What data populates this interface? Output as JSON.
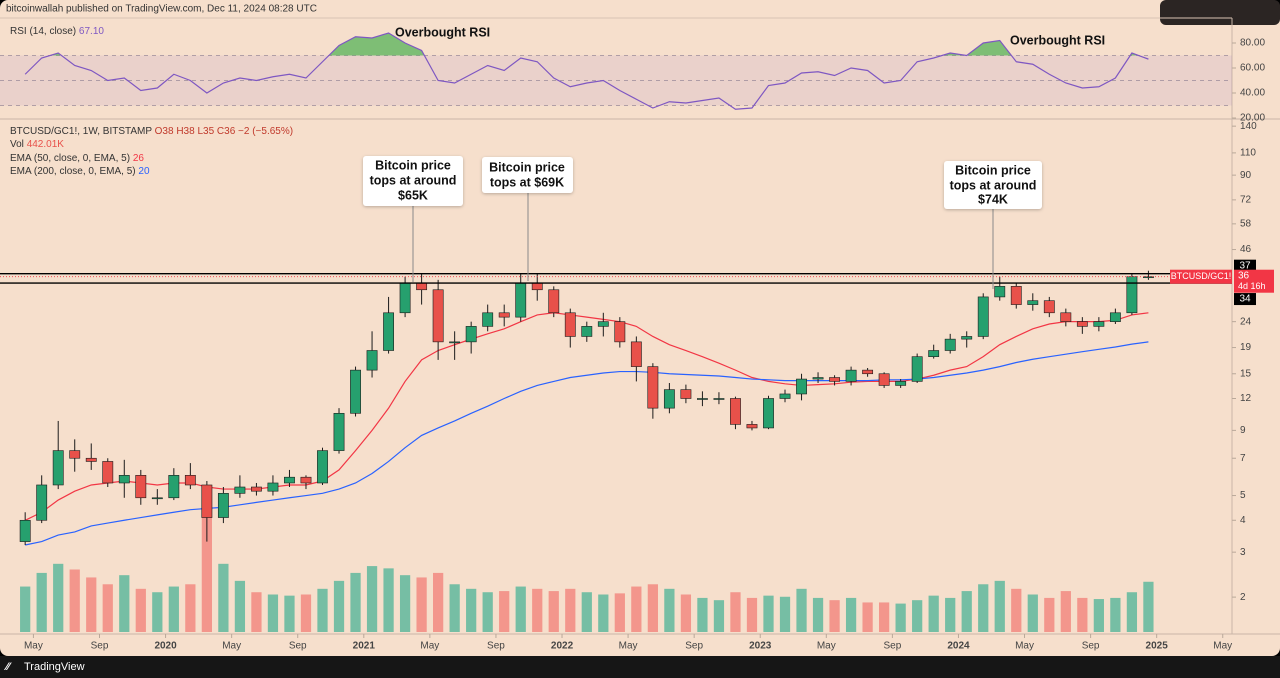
{
  "header": "bitcoinwallah published on TradingView.com, Dec 11, 2024 08:28 UTC",
  "footer": "TradingView",
  "chart_data": {
    "type": "candlestick",
    "legend": {
      "symbol": "BTCUSD/GC1!, 1W, BITSTAMP",
      "ohlc": "O38 H38 L35 C36 −2 (−5.65%)",
      "volume_label": "Vol",
      "volume_value": "442.01K"
    },
    "x": [
      "2019-04",
      "2019-05",
      "2019-06",
      "2019-07",
      "2019-08",
      "2019-09",
      "2019-10",
      "2019-11",
      "2019-12",
      "2020-01",
      "2020-02",
      "2020-03",
      "2020-04",
      "2020-05",
      "2020-06",
      "2020-07",
      "2020-08",
      "2020-09",
      "2020-10",
      "2020-11",
      "2020-12",
      "2021-01",
      "2021-02",
      "2021-03",
      "2021-04",
      "2021-05",
      "2021-06",
      "2021-07",
      "2021-08",
      "2021-09",
      "2021-10",
      "2021-11",
      "2021-12",
      "2022-01",
      "2022-02",
      "2022-03",
      "2022-04",
      "2022-05",
      "2022-06",
      "2022-07",
      "2022-08",
      "2022-09",
      "2022-10",
      "2022-11",
      "2022-12",
      "2023-01",
      "2023-02",
      "2023-03",
      "2023-04",
      "2023-05",
      "2023-06",
      "2023-07",
      "2023-08",
      "2023-09",
      "2023-10",
      "2023-11",
      "2023-12",
      "2024-01",
      "2024-02",
      "2024-03",
      "2024-04",
      "2024-05",
      "2024-06",
      "2024-07",
      "2024-08",
      "2024-09",
      "2024-10",
      "2024-11",
      "2024-12"
    ],
    "open": [
      3.3,
      4.0,
      5.5,
      7.5,
      7.0,
      6.8,
      5.6,
      6.0,
      4.9,
      4.9,
      6.0,
      5.5,
      4.1,
      5.1,
      5.4,
      5.2,
      5.6,
      5.9,
      5.6,
      7.5,
      10.5,
      15.5,
      18.5,
      26,
      34,
      32,
      20,
      20,
      23,
      26,
      25,
      34,
      32,
      26,
      21,
      23,
      24,
      20,
      16,
      11,
      13,
      12,
      12,
      12,
      9.5,
      9.2,
      12,
      12.5,
      14.3,
      14.5,
      14,
      15.5,
      15,
      13.5,
      14,
      17.5,
      18.5,
      20.5,
      21,
      30,
      33,
      28,
      29,
      26,
      24,
      23,
      24,
      26,
      36
    ],
    "high": [
      4.3,
      6.0,
      9.8,
      8.3,
      8.0,
      7.0,
      6.9,
      6.3,
      5.3,
      6.4,
      6.7,
      5.7,
      5.4,
      6.0,
      5.6,
      6.0,
      6.3,
      6.0,
      7.7,
      11,
      16,
      22,
      30,
      36,
      37,
      35,
      22,
      24,
      28,
      28,
      37,
      37,
      33,
      27,
      24,
      26,
      25,
      21,
      16.5,
      13.8,
      13.6,
      12.8,
      12.7,
      12.2,
      9.8,
      12.3,
      13,
      15,
      15.2,
      14.8,
      16,
      15.8,
      15.2,
      14.3,
      18,
      19.5,
      21.5,
      22,
      31,
      36,
      34,
      31,
      30,
      27,
      25,
      25,
      27,
      37,
      38
    ],
    "low": [
      3.2,
      3.9,
      5.3,
      6.2,
      6.3,
      5.4,
      4.9,
      4.6,
      4.6,
      4.8,
      5.3,
      3.3,
      3.9,
      4.9,
      5.0,
      5.0,
      5.4,
      5.3,
      5.5,
      7.3,
      10.2,
      14.5,
      18,
      25,
      28,
      17,
      17,
      18,
      22,
      23,
      24,
      29,
      25,
      19,
      20,
      21,
      19,
      14,
      10,
      10.5,
      11.5,
      11.2,
      11.4,
      9.1,
      9.0,
      9.1,
      11.6,
      11.8,
      13.8,
      13.5,
      13.5,
      14.6,
      13.2,
      13.2,
      13.8,
      17.2,
      18,
      19,
      20.5,
      29,
      27,
      26.5,
      25,
      23,
      21.5,
      22,
      23.5,
      25.5,
      35
    ],
    "close": [
      4.0,
      5.5,
      7.5,
      7.0,
      6.8,
      5.6,
      6.0,
      4.9,
      4.9,
      6.0,
      5.5,
      4.1,
      5.1,
      5.4,
      5.2,
      5.6,
      5.9,
      5.6,
      7.5,
      10.5,
      15.5,
      18.5,
      26,
      34,
      32,
      20,
      20,
      23,
      26,
      25,
      34,
      32,
      26,
      21,
      23,
      24,
      20,
      16,
      11,
      13,
      12,
      12,
      12,
      9.5,
      9.2,
      12,
      12.5,
      14.3,
      14.5,
      14,
      15.5,
      15,
      13.5,
      14,
      17.5,
      18.5,
      20.5,
      21,
      30,
      33,
      28,
      29,
      26,
      24,
      23,
      24,
      26,
      36,
      36
    ],
    "up_color": "#26a06e",
    "down_color": "#e8514a",
    "volume": {
      "up_color": "#5fb89c",
      "down_color": "#f28a80",
      "values": [
        400,
        520,
        600,
        550,
        480,
        420,
        500,
        380,
        350,
        400,
        420,
        1100,
        600,
        450,
        350,
        330,
        320,
        330,
        380,
        450,
        520,
        580,
        560,
        500,
        480,
        520,
        420,
        380,
        350,
        360,
        400,
        380,
        360,
        380,
        350,
        330,
        340,
        400,
        420,
        380,
        330,
        300,
        280,
        350,
        300,
        320,
        310,
        380,
        300,
        280,
        300,
        260,
        260,
        250,
        280,
        320,
        300,
        360,
        420,
        450,
        380,
        330,
        300,
        360,
        300,
        290,
        300,
        350,
        442.01
      ]
    },
    "lines": [
      {
        "name": "EMA (50, close, 0, EMA, 5)",
        "color": "#f23645",
        "last": 26,
        "values": [
          4.0,
          4.3,
          4.8,
          5.2,
          5.5,
          5.6,
          5.7,
          5.6,
          5.5,
          5.6,
          5.6,
          5.4,
          5.3,
          5.3,
          5.3,
          5.4,
          5.5,
          5.5,
          5.7,
          6.3,
          7.5,
          9,
          11,
          14,
          17,
          18.5,
          19.5,
          20.5,
          21.5,
          22.5,
          24,
          25.5,
          26,
          25.5,
          25,
          24.5,
          24,
          23,
          21,
          19.5,
          18.5,
          17.5,
          16.5,
          15.5,
          14.5,
          14,
          13.7,
          13.5,
          13.6,
          13.7,
          13.9,
          14,
          14,
          14,
          14.3,
          14.8,
          15.5,
          16,
          17.5,
          19.5,
          21,
          22.5,
          23.5,
          24,
          24,
          24,
          24.3,
          25.5,
          26
        ]
      },
      {
        "name": "EMA (200, close, 0, EMA, 5)",
        "color": "#2962ff",
        "last": 20,
        "values": [
          3.2,
          3.3,
          3.5,
          3.6,
          3.8,
          3.9,
          4.0,
          4.1,
          4.2,
          4.3,
          4.4,
          4.45,
          4.5,
          4.6,
          4.7,
          4.8,
          4.9,
          5.0,
          5.1,
          5.3,
          5.6,
          6.1,
          6.8,
          7.7,
          8.6,
          9.2,
          9.8,
          10.5,
          11.2,
          12,
          12.8,
          13.5,
          14,
          14.5,
          14.8,
          15.1,
          15.3,
          15.3,
          15.2,
          15,
          14.9,
          14.8,
          14.7,
          14.5,
          14.3,
          14.2,
          14.1,
          14.1,
          14.1,
          14.1,
          14.1,
          14.1,
          14.2,
          14.2,
          14.3,
          14.5,
          14.8,
          15.1,
          15.5,
          16,
          16.6,
          17.1,
          17.5,
          17.9,
          18.3,
          18.7,
          19.1,
          19.6,
          20
        ]
      }
    ],
    "log_scale": true,
    "grid": false,
    "ylim": [
      1.46,
      148
    ],
    "yticks": [
      2,
      3,
      4,
      5,
      7,
      9,
      12,
      15,
      19,
      24,
      46,
      58,
      72,
      90,
      110,
      140
    ],
    "hlines": [
      37,
      34
    ],
    "hline_color": "#000000",
    "last_price": {
      "value": 36,
      "name": "BTCUSD/GC1!",
      "countdown": "4d 16h",
      "color": "#f23645"
    },
    "xlim": [
      2019.2,
      2025.38
    ],
    "xticks": [
      {
        "value": 2019.3333,
        "label": "May"
      },
      {
        "value": 2019.6667,
        "label": "Sep"
      },
      2020,
      {
        "value": 2020.3333,
        "label": "May"
      },
      {
        "value": 2020.6667,
        "label": "Sep"
      },
      2021,
      {
        "value": 2021.3333,
        "label": "May"
      },
      {
        "value": 2021.6667,
        "label": "Sep"
      },
      2022,
      {
        "value": 2022.3333,
        "label": "May"
      },
      {
        "value": 2022.6667,
        "label": "Sep"
      },
      2023,
      {
        "value": 2023.3333,
        "label": "May"
      },
      {
        "value": 2023.6667,
        "label": "Sep"
      },
      2024,
      {
        "value": 2024.3333,
        "label": "May"
      },
      {
        "value": 2024.6667,
        "label": "Sep"
      },
      2025,
      {
        "value": 2025.3333,
        "label": "May"
      }
    ],
    "rsi": {
      "label": "RSI (14, close)",
      "current": {
        "value": 67.1,
        "label": "67.10"
      },
      "color": "#7e57c2",
      "overbought_color": "#4caf50",
      "ylim": [
        20,
        98.4
      ],
      "yticks": [
        {
          "value": 20,
          "label": "20.00"
        },
        {
          "value": 40,
          "label": "40.00"
        },
        {
          "value": 60,
          "label": "60.00"
        },
        {
          "value": 80,
          "label": "80.00"
        }
      ],
      "levels": [
        70,
        50,
        30
      ],
      "values": [
        55,
        68,
        72,
        62,
        58,
        50,
        52,
        42,
        44,
        55,
        50,
        40,
        48,
        52,
        50,
        53,
        55,
        52,
        65,
        78,
        85,
        84,
        88,
        80,
        74,
        50,
        48,
        55,
        62,
        58,
        68,
        65,
        52,
        45,
        48,
        50,
        42,
        35,
        28,
        33,
        32,
        34,
        36,
        27,
        28,
        46,
        48,
        56,
        57,
        54,
        60,
        58,
        48,
        50,
        65,
        68,
        72,
        70,
        80,
        82,
        65,
        63,
        55,
        48,
        44,
        45,
        52,
        72,
        67.1
      ]
    },
    "annotations": [
      {
        "text": "Overbought RSI"
      },
      {
        "text": "Overbought RSI"
      },
      {
        "lines": [
          "Bitcoin price",
          "tops at around",
          "$65K"
        ]
      },
      {
        "lines": [
          "Bitcoin price",
          "tops at $69K"
        ]
      },
      {
        "lines": [
          "Bitcoin price",
          "tops at around",
          "$74K"
        ]
      }
    ]
  }
}
